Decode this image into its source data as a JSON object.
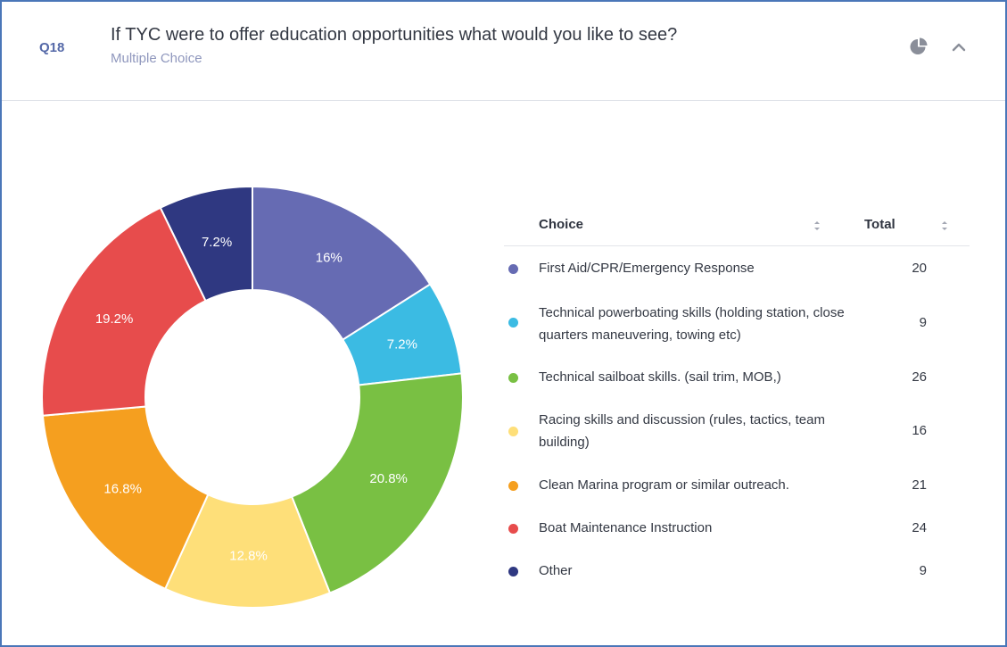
{
  "question": {
    "number": "Q18",
    "title": "If TYC were to offer education opportunities what would you like to see?",
    "type": "Multiple Choice"
  },
  "header_icons": {
    "chart_toggle": "pie-chart-icon",
    "collapse": "chevron-up-icon"
  },
  "table": {
    "choice_header": "Choice",
    "total_header": "Total",
    "sort_icon": "sort-icon"
  },
  "chart_data": {
    "type": "pie",
    "donut": true,
    "legend_position": "right",
    "categories": [
      "First Aid/CPR/Emergency Response",
      "Technical powerboating skills (holding station, close quarters maneuvering, towing etc)",
      "Technical sailboat skills. (sail trim, MOB,)",
      "Racing skills and discussion (rules, tactics, team building)",
      "Clean Marina program or similar outreach.",
      "Boat Maintenance Instruction",
      "Other"
    ],
    "values": [
      20,
      9,
      26,
      16,
      21,
      24,
      9
    ],
    "percent_labels": [
      "16%",
      "7.2%",
      "20.8%",
      "12.8%",
      "16.8%",
      "19.2%",
      "7.2%"
    ],
    "colors": [
      "#666bb3",
      "#3bbbe3",
      "#79c043",
      "#fedf79",
      "#f59f1f",
      "#e74c4c",
      "#2f3881"
    ]
  }
}
